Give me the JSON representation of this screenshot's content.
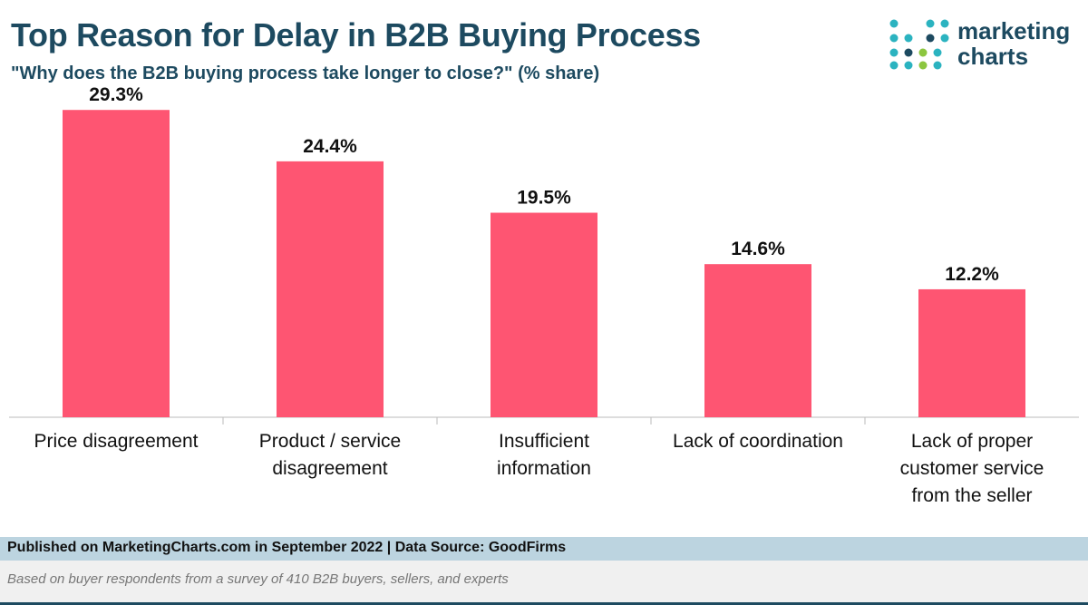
{
  "header": {
    "title": "Top Reason for Delay in B2B Buying Process",
    "subtitle": "\"Why does the B2B buying process take longer to close?\" (% share)"
  },
  "logo": {
    "line1": "marketing",
    "line2": "charts"
  },
  "chart_data": {
    "type": "bar",
    "categories": [
      [
        "Price disagreement"
      ],
      [
        "Product / service",
        "disagreement"
      ],
      [
        "Insufficient",
        "information"
      ],
      [
        "Lack of coordination"
      ],
      [
        "Lack of proper",
        "customer service",
        "from the seller"
      ]
    ],
    "values": [
      29.3,
      24.4,
      19.5,
      14.6,
      12.2
    ],
    "value_labels": [
      "29.3%",
      "24.4%",
      "19.5%",
      "14.6%",
      "12.2%"
    ],
    "ylim": [
      0,
      32
    ],
    "bar_color": "#fe5572",
    "grid": false
  },
  "footer": {
    "published": "Published on MarketingCharts.com in September 2022 | Data Source: GoodFirms",
    "note": "Based on buyer respondents from a survey of 410 B2B buyers, sellers, and experts"
  },
  "colors": {
    "title": "#1d4a60",
    "bar": "#fe5572",
    "footer_band": "#bcd4e0"
  }
}
